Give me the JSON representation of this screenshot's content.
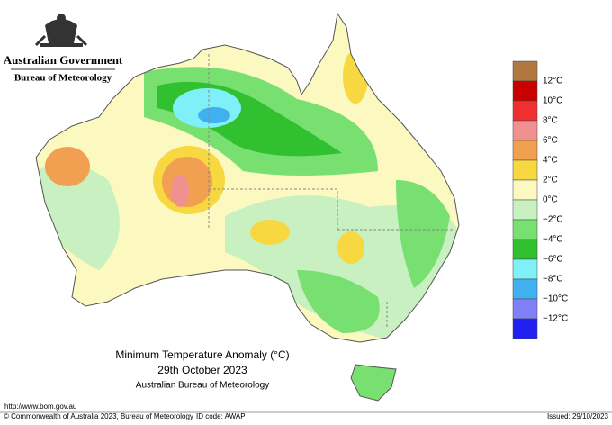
{
  "header": {
    "agency": "Australian Government",
    "bureau": "Bureau of Meteorology"
  },
  "map": {
    "title": "Minimum Temperature Anomaly (°C)",
    "date": "29th October 2023",
    "source": "Australian Bureau of Meteorology"
  },
  "legend": {
    "colors": [
      "#b07840",
      "#c80000",
      "#f03030",
      "#f09090",
      "#f0a050",
      "#f8d840",
      "#fbf8c0",
      "#c8f0c0",
      "#78e070",
      "#30c030",
      "#80f0f8",
      "#40b0f0",
      "#8080f8",
      "#2020f0"
    ],
    "labels": [
      "12°C",
      "10°C",
      "8°C",
      "6°C",
      "4°C",
      "2°C",
      "0°C",
      "−2°C",
      "−4°C",
      "−6°C",
      "−8°C",
      "−10°C",
      "−12°C"
    ]
  },
  "footer": {
    "url": "http://www.bom.gov.au",
    "copyright": "© Commonwealth of Australia 2023, Bureau of Meteorology",
    "id_code": "ID code: AWAP",
    "issued": "Issued: 29/10/2023"
  }
}
